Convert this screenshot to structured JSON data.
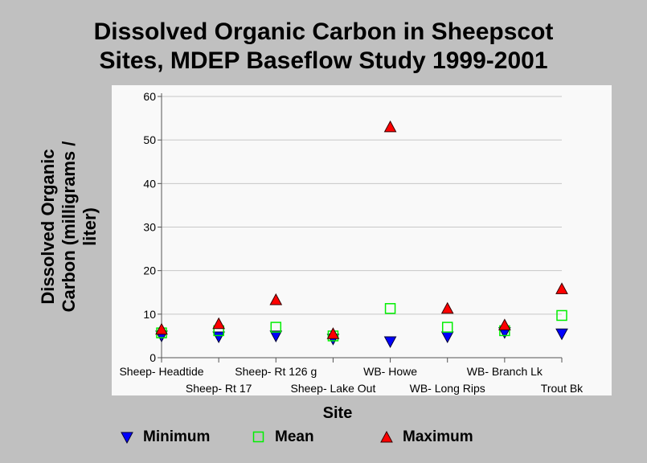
{
  "chart_data": {
    "type": "scatter",
    "title": [
      "Dissolved Organic Carbon in Sheepscot",
      "Sites, MDEP Baseflow Study 1999-2001"
    ],
    "xlabel": "Site",
    "ylabel": [
      "Dissolved Organic",
      "Carbon (milligrams /",
      "liter)"
    ],
    "categories": [
      "Sheep- Headtide",
      "Sheep- Rt 17",
      "Sheep- Rt 126 g",
      "Sheep- Lake Out",
      "WB- Howe",
      "WB- Long Rips",
      "WB- Branch Lk",
      "Trout Bk"
    ],
    "ylim": [
      0,
      60
    ],
    "yticks": [
      "0",
      "10",
      "20",
      "30",
      "40",
      "50",
      "60"
    ],
    "grid": true,
    "legend_position": "bottom",
    "series": [
      {
        "name": "Minimum",
        "marker": "triangle-down",
        "color": "#0000ff",
        "values": [
          5.0,
          4.8,
          5.0,
          4.3,
          3.7,
          4.8,
          5.8,
          5.5
        ]
      },
      {
        "name": "Mean",
        "marker": "square-open",
        "color": "#00ee00",
        "values": [
          5.7,
          6.2,
          7.0,
          5.0,
          11.3,
          7.0,
          6.2,
          9.7
        ]
      },
      {
        "name": "Maximum",
        "marker": "triangle-up",
        "color": "#ff0000",
        "values": [
          6.5,
          7.8,
          13.3,
          5.5,
          53.0,
          11.3,
          7.5,
          15.8
        ]
      }
    ]
  }
}
